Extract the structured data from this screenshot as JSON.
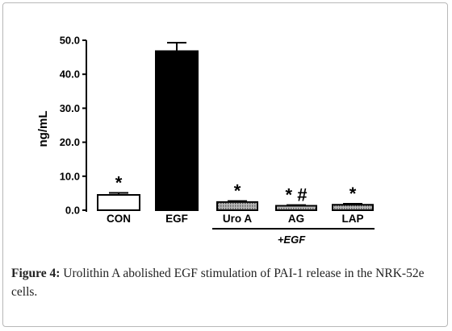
{
  "chart_data": {
    "type": "bar",
    "ylabel": "ng/mL",
    "ylim": [
      0,
      50
    ],
    "yticks": [
      "0.0",
      "10.0",
      "20.0",
      "30.0",
      "40.0",
      "50.0"
    ],
    "categories": [
      "CON",
      "EGF",
      "Uro A",
      "AG",
      "LAP"
    ],
    "values": [
      4.5,
      46.8,
      2.4,
      1.3,
      1.6
    ],
    "errors": [
      0.6,
      2.5,
      0.3,
      0.2,
      0.3
    ],
    "fills": [
      "white",
      "black",
      "dotted",
      "dotted",
      "dotted"
    ],
    "annotations": [
      "*",
      "",
      "*",
      "* #",
      "*"
    ],
    "group_label": "+EGF",
    "grid": false,
    "legend": "none"
  },
  "caption": {
    "label": "Figure 4:",
    "text": "Urolithin A abolished EGF stimulation of PAI-1 release in the NRK-52e cells."
  },
  "colors": {
    "bar_black": "#000000",
    "bar_white": "#ffffff",
    "bar_dotted": "#8a8a8a",
    "axis": "#000000",
    "border": "#b8b8b8"
  }
}
